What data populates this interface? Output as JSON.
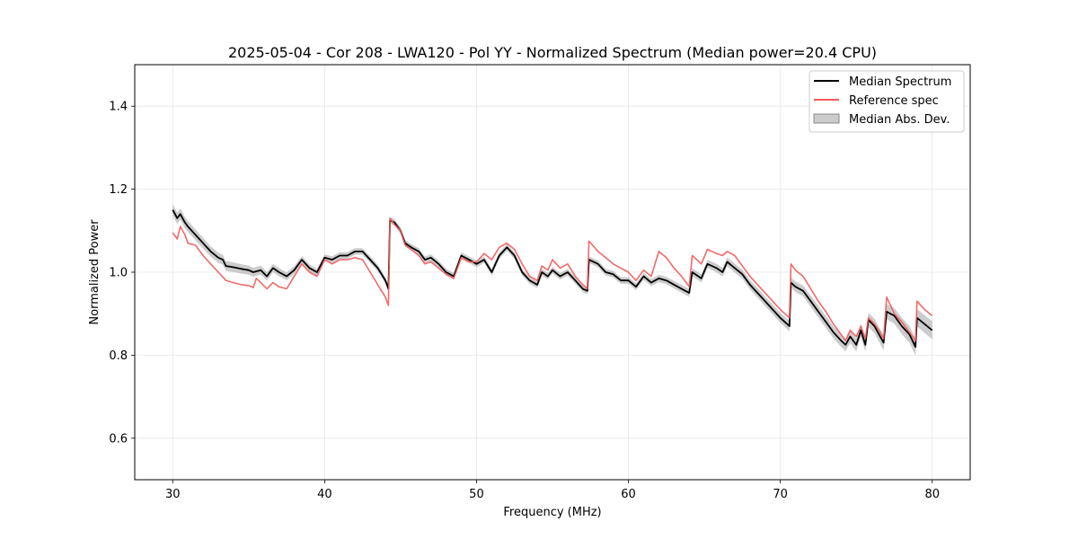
{
  "chart_data": {
    "type": "line",
    "title": "2025-05-04 - Cor 208 - LWA120 - Pol YY - Normalized Spectrum (Median power=20.4 CPU)",
    "xlabel": "Frequency (MHz)",
    "ylabel": "Normalized Power",
    "xlim": [
      27.5,
      82.5
    ],
    "ylim": [
      0.5,
      1.5
    ],
    "xticks": [
      30,
      40,
      50,
      60,
      70,
      80
    ],
    "yticks": [
      0.6,
      0.8,
      1.0,
      1.2,
      1.4
    ],
    "grid": true,
    "legend_position": "top-right",
    "series": [
      {
        "name": "Median Spectrum",
        "color": "#000000",
        "points": [
          [
            30.0,
            1.15
          ],
          [
            30.3,
            1.13
          ],
          [
            30.5,
            1.14
          ],
          [
            30.8,
            1.12
          ],
          [
            31.0,
            1.11
          ],
          [
            31.5,
            1.09
          ],
          [
            32.0,
            1.07
          ],
          [
            32.5,
            1.05
          ],
          [
            33.0,
            1.035
          ],
          [
            33.3,
            1.03
          ],
          [
            33.5,
            1.015
          ],
          [
            34.0,
            1.012
          ],
          [
            34.5,
            1.008
          ],
          [
            35.0,
            1.005
          ],
          [
            35.3,
            1.0
          ],
          [
            35.8,
            1.005
          ],
          [
            36.2,
            0.99
          ],
          [
            36.6,
            1.01
          ],
          [
            37.0,
            1.0
          ],
          [
            37.5,
            0.99
          ],
          [
            38.0,
            1.005
          ],
          [
            38.5,
            1.03
          ],
          [
            39.0,
            1.01
          ],
          [
            39.5,
            1.0
          ],
          [
            40.0,
            1.035
          ],
          [
            40.5,
            1.03
          ],
          [
            41.0,
            1.04
          ],
          [
            41.5,
            1.04
          ],
          [
            42.0,
            1.05
          ],
          [
            42.5,
            1.05
          ],
          [
            43.0,
            1.03
          ],
          [
            43.5,
            1.01
          ],
          [
            44.0,
            0.98
          ],
          [
            44.2,
            0.96
          ],
          [
            44.3,
            1.125
          ],
          [
            44.6,
            1.12
          ],
          [
            45.0,
            1.1
          ],
          [
            45.3,
            1.07
          ],
          [
            45.7,
            1.06
          ],
          [
            46.2,
            1.05
          ],
          [
            46.6,
            1.03
          ],
          [
            47.0,
            1.035
          ],
          [
            47.5,
            1.02
          ],
          [
            48.0,
            1.0
          ],
          [
            48.5,
            0.99
          ],
          [
            49.0,
            1.04
          ],
          [
            49.5,
            1.03
          ],
          [
            50.0,
            1.02
          ],
          [
            50.5,
            1.03
          ],
          [
            51.0,
            1.0
          ],
          [
            51.5,
            1.04
          ],
          [
            52.0,
            1.06
          ],
          [
            52.5,
            1.04
          ],
          [
            53.0,
            1.0
          ],
          [
            53.5,
            0.98
          ],
          [
            54.0,
            0.97
          ],
          [
            54.3,
            1.0
          ],
          [
            54.7,
            0.99
          ],
          [
            55.0,
            1.005
          ],
          [
            55.5,
            0.99
          ],
          [
            56.0,
            1.0
          ],
          [
            56.5,
            0.98
          ],
          [
            57.0,
            0.96
          ],
          [
            57.3,
            0.955
          ],
          [
            57.4,
            1.03
          ],
          [
            58.0,
            1.02
          ],
          [
            58.5,
            1.0
          ],
          [
            59.0,
            0.995
          ],
          [
            59.5,
            0.98
          ],
          [
            60.0,
            0.98
          ],
          [
            60.5,
            0.965
          ],
          [
            61.0,
            0.99
          ],
          [
            61.5,
            0.975
          ],
          [
            62.0,
            0.985
          ],
          [
            62.5,
            0.98
          ],
          [
            63.0,
            0.97
          ],
          [
            63.5,
            0.96
          ],
          [
            64.0,
            0.95
          ],
          [
            64.2,
            1.0
          ],
          [
            64.8,
            0.985
          ],
          [
            65.2,
            1.02
          ],
          [
            65.8,
            1.01
          ],
          [
            66.2,
            1.0
          ],
          [
            66.5,
            1.025
          ],
          [
            67.0,
            1.01
          ],
          [
            67.5,
            0.995
          ],
          [
            68.0,
            0.97
          ],
          [
            68.5,
            0.95
          ],
          [
            69.0,
            0.93
          ],
          [
            69.5,
            0.91
          ],
          [
            70.0,
            0.89
          ],
          [
            70.6,
            0.87
          ],
          [
            70.7,
            0.975
          ],
          [
            71.0,
            0.965
          ],
          [
            71.5,
            0.955
          ],
          [
            72.0,
            0.93
          ],
          [
            72.5,
            0.905
          ],
          [
            73.0,
            0.88
          ],
          [
            73.5,
            0.855
          ],
          [
            74.0,
            0.835
          ],
          [
            74.3,
            0.825
          ],
          [
            74.6,
            0.845
          ],
          [
            75.0,
            0.825
          ],
          [
            75.3,
            0.86
          ],
          [
            75.6,
            0.825
          ],
          [
            75.8,
            0.885
          ],
          [
            76.2,
            0.87
          ],
          [
            76.5,
            0.85
          ],
          [
            76.8,
            0.83
          ],
          [
            77.0,
            0.905
          ],
          [
            77.5,
            0.895
          ],
          [
            78.0,
            0.87
          ],
          [
            78.5,
            0.85
          ],
          [
            78.9,
            0.82
          ],
          [
            79.0,
            0.89
          ],
          [
            79.5,
            0.875
          ],
          [
            80.0,
            0.86
          ]
        ]
      },
      {
        "name": "Reference spec",
        "color": "#f05a5a",
        "points": [
          [
            30.0,
            1.095
          ],
          [
            30.3,
            1.08
          ],
          [
            30.5,
            1.11
          ],
          [
            30.8,
            1.09
          ],
          [
            31.0,
            1.07
          ],
          [
            31.5,
            1.065
          ],
          [
            32.0,
            1.04
          ],
          [
            32.5,
            1.02
          ],
          [
            33.0,
            1.0
          ],
          [
            33.5,
            0.98
          ],
          [
            34.0,
            0.975
          ],
          [
            34.5,
            0.97
          ],
          [
            35.0,
            0.968
          ],
          [
            35.3,
            0.963
          ],
          [
            35.5,
            0.985
          ],
          [
            35.8,
            0.975
          ],
          [
            36.2,
            0.96
          ],
          [
            36.6,
            0.975
          ],
          [
            37.0,
            0.965
          ],
          [
            37.5,
            0.96
          ],
          [
            38.0,
            0.99
          ],
          [
            38.5,
            1.02
          ],
          [
            39.0,
            1.0
          ],
          [
            39.5,
            0.99
          ],
          [
            40.0,
            1.03
          ],
          [
            40.5,
            1.02
          ],
          [
            41.0,
            1.03
          ],
          [
            41.5,
            1.03
          ],
          [
            42.0,
            1.035
          ],
          [
            42.5,
            1.03
          ],
          [
            43.0,
            1.0
          ],
          [
            43.5,
            0.97
          ],
          [
            44.0,
            0.94
          ],
          [
            44.2,
            0.92
          ],
          [
            44.3,
            1.13
          ],
          [
            44.6,
            1.115
          ],
          [
            45.0,
            1.1
          ],
          [
            45.3,
            1.065
          ],
          [
            45.7,
            1.055
          ],
          [
            46.2,
            1.04
          ],
          [
            46.6,
            1.02
          ],
          [
            47.0,
            1.025
          ],
          [
            47.5,
            1.01
          ],
          [
            48.0,
            0.995
          ],
          [
            48.5,
            0.985
          ],
          [
            49.0,
            1.035
          ],
          [
            49.5,
            1.025
          ],
          [
            50.0,
            1.025
          ],
          [
            50.5,
            1.045
          ],
          [
            51.0,
            1.03
          ],
          [
            51.5,
            1.06
          ],
          [
            52.0,
            1.07
          ],
          [
            52.5,
            1.055
          ],
          [
            53.0,
            1.02
          ],
          [
            53.5,
            0.99
          ],
          [
            54.0,
            0.98
          ],
          [
            54.3,
            1.015
          ],
          [
            54.7,
            1.005
          ],
          [
            55.0,
            1.03
          ],
          [
            55.5,
            1.01
          ],
          [
            56.0,
            1.02
          ],
          [
            56.5,
            0.99
          ],
          [
            57.0,
            0.97
          ],
          [
            57.3,
            0.96
          ],
          [
            57.4,
            1.075
          ],
          [
            58.0,
            1.05
          ],
          [
            58.5,
            1.035
          ],
          [
            59.0,
            1.02
          ],
          [
            59.5,
            1.01
          ],
          [
            60.0,
            1.0
          ],
          [
            60.5,
            0.98
          ],
          [
            61.0,
            1.005
          ],
          [
            61.5,
            0.99
          ],
          [
            62.0,
            1.05
          ],
          [
            62.5,
            1.035
          ],
          [
            63.0,
            1.01
          ],
          [
            63.5,
            0.99
          ],
          [
            64.0,
            0.965
          ],
          [
            64.2,
            1.04
          ],
          [
            64.8,
            1.02
          ],
          [
            65.2,
            1.055
          ],
          [
            65.8,
            1.045
          ],
          [
            66.2,
            1.04
          ],
          [
            66.5,
            1.05
          ],
          [
            67.0,
            1.04
          ],
          [
            67.5,
            1.015
          ],
          [
            68.0,
            0.99
          ],
          [
            68.5,
            0.97
          ],
          [
            69.0,
            0.95
          ],
          [
            69.5,
            0.93
          ],
          [
            70.0,
            0.91
          ],
          [
            70.6,
            0.89
          ],
          [
            70.7,
            1.02
          ],
          [
            71.0,
            1.005
          ],
          [
            71.5,
            0.99
          ],
          [
            72.0,
            0.96
          ],
          [
            72.5,
            0.93
          ],
          [
            73.0,
            0.905
          ],
          [
            73.5,
            0.875
          ],
          [
            74.0,
            0.85
          ],
          [
            74.3,
            0.835
          ],
          [
            74.6,
            0.86
          ],
          [
            75.0,
            0.845
          ],
          [
            75.3,
            0.87
          ],
          [
            75.6,
            0.84
          ],
          [
            75.8,
            0.89
          ],
          [
            76.2,
            0.875
          ],
          [
            76.5,
            0.86
          ],
          [
            76.8,
            0.84
          ],
          [
            77.0,
            0.94
          ],
          [
            77.5,
            0.9
          ],
          [
            78.0,
            0.88
          ],
          [
            78.5,
            0.855
          ],
          [
            78.9,
            0.835
          ],
          [
            79.0,
            0.93
          ],
          [
            79.5,
            0.91
          ],
          [
            80.0,
            0.895
          ]
        ]
      }
    ],
    "band": {
      "name": "Median Abs. Dev.",
      "color": "#aaaaaa",
      "of_series": "Median Spectrum",
      "half_width": [
        [
          30.0,
          0.014
        ],
        [
          40.0,
          0.008
        ],
        [
          50.0,
          0.008
        ],
        [
          60.0,
          0.008
        ],
        [
          70.0,
          0.012
        ],
        [
          75.0,
          0.016
        ],
        [
          80.0,
          0.022
        ]
      ]
    }
  }
}
